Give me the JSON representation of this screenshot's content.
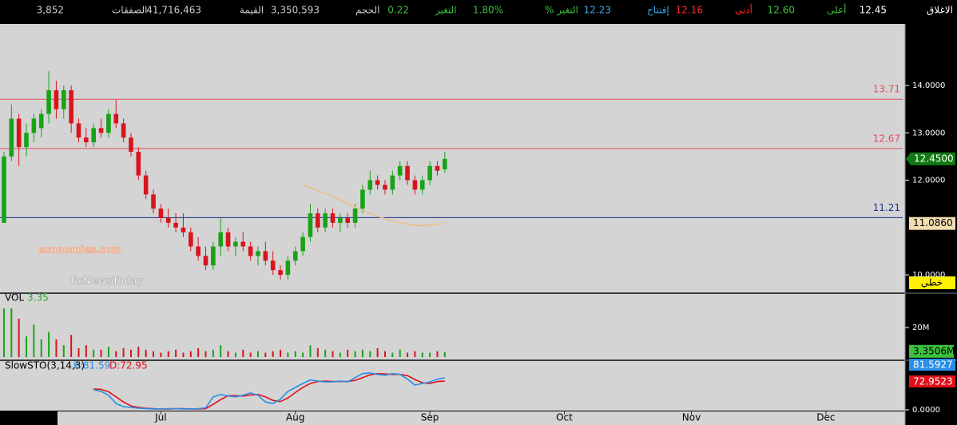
{
  "header": {
    "stats": [
      {
        "label": "الاغلاق",
        "value": "12.45"
      },
      {
        "label": "أعلى",
        "value": "12.60"
      },
      {
        "label": "أدنى",
        "value": "12.16"
      },
      {
        "label": "إفتتاح",
        "value": "12.23"
      },
      {
        "label": "التغير %",
        "value": "1.80%"
      },
      {
        "label": "التغير",
        "value": "0.22"
      },
      {
        "label": "الحجم",
        "value": "3,350,593"
      },
      {
        "label": "القيمة",
        "value": "41,716,463"
      },
      {
        "label": "الصفقات",
        "value": "3,852"
      }
    ]
  },
  "watermark": [
    "economies.com",
    "FxNewsToday"
  ],
  "chart_data": {
    "type": "candlestick",
    "up_color": "#17a317",
    "down_color": "#d8151d",
    "xlim": [
      -0.53,
      120.6
    ],
    "xticks": [
      {
        "value": 21,
        "label": "Jul"
      },
      {
        "value": 39,
        "label": "Aug"
      },
      {
        "value": 57,
        "label": "Sep"
      },
      {
        "value": 75,
        "label": "Oct"
      },
      {
        "value": 92,
        "label": "Nov"
      },
      {
        "value": 110,
        "label": "Dec"
      }
    ],
    "ylim": [
      9.63,
      15.3
    ],
    "yticks": [
      {
        "value": 10,
        "label": "10.0000"
      },
      {
        "value": 12,
        "label": "12.0000"
      },
      {
        "value": 13,
        "label": "13.0000"
      },
      {
        "value": 14,
        "label": "14.0000"
      }
    ],
    "open": [
      11.1,
      12.5,
      13.3,
      12.7,
      13.0,
      13.1,
      13.4,
      13.9,
      13.5,
      13.9,
      13.2,
      12.9,
      12.8,
      13.1,
      13.0,
      13.4,
      13.2,
      12.9,
      12.6,
      12.1,
      11.7,
      11.4,
      11.2,
      11.1,
      11.0,
      10.9,
      10.6,
      10.4,
      10.2,
      10.6,
      10.9,
      10.6,
      10.7,
      10.6,
      10.4,
      10.5,
      10.3,
      10.1,
      10.0,
      10.3,
      10.5,
      10.8,
      11.3,
      11.0,
      11.3,
      11.1,
      11.2,
      11.1,
      11.4,
      11.8,
      12.0,
      11.9,
      11.8,
      12.1,
      12.3,
      12.0,
      11.8,
      12.0,
      12.3,
      12.23
    ],
    "high": [
      12.6,
      13.6,
      13.4,
      13.2,
      13.4,
      13.5,
      14.3,
      14.1,
      14.0,
      14.0,
      13.3,
      13.1,
      13.2,
      13.3,
      13.5,
      13.7,
      13.3,
      13.0,
      12.7,
      12.2,
      11.8,
      11.5,
      11.4,
      11.3,
      11.3,
      11.0,
      10.8,
      10.6,
      10.7,
      11.2,
      11.0,
      10.8,
      10.9,
      10.7,
      10.6,
      10.7,
      10.5,
      10.2,
      10.4,
      10.6,
      10.9,
      11.5,
      11.4,
      11.4,
      11.4,
      11.3,
      11.3,
      11.5,
      11.9,
      12.2,
      12.1,
      12.0,
      12.2,
      12.4,
      12.4,
      12.1,
      12.1,
      12.4,
      12.4,
      12.6
    ],
    "low": [
      11.1,
      12.4,
      12.3,
      12.5,
      12.8,
      12.9,
      13.2,
      13.3,
      13.3,
      13.0,
      12.8,
      12.7,
      12.7,
      12.9,
      12.9,
      13.1,
      12.8,
      12.5,
      12.0,
      11.6,
      11.3,
      11.1,
      11.0,
      10.9,
      10.8,
      10.5,
      10.3,
      10.1,
      10.1,
      10.4,
      10.5,
      10.4,
      10.5,
      10.3,
      10.2,
      10.2,
      10.0,
      9.9,
      9.9,
      10.2,
      10.4,
      10.7,
      10.9,
      10.9,
      11.0,
      10.9,
      11.0,
      11.0,
      11.3,
      11.7,
      11.8,
      11.7,
      11.7,
      12.0,
      11.9,
      11.7,
      11.7,
      11.9,
      12.1,
      12.16
    ],
    "close": [
      12.5,
      13.3,
      12.7,
      13.0,
      13.3,
      13.4,
      13.9,
      13.5,
      13.9,
      13.2,
      12.9,
      12.8,
      13.1,
      13.0,
      13.4,
      13.2,
      12.9,
      12.6,
      12.1,
      11.7,
      11.4,
      11.2,
      11.1,
      11.0,
      10.9,
      10.6,
      10.4,
      10.2,
      10.6,
      10.9,
      10.6,
      10.7,
      10.6,
      10.4,
      10.5,
      10.3,
      10.1,
      10.0,
      10.3,
      10.5,
      10.8,
      11.3,
      11.0,
      11.3,
      11.1,
      11.2,
      11.1,
      11.4,
      11.8,
      12.0,
      11.9,
      11.8,
      12.1,
      12.3,
      12.0,
      11.8,
      12.0,
      12.3,
      12.2,
      12.45
    ],
    "last_price": {
      "value": 12.45,
      "label": "12.4500",
      "color": "#0f7a0f"
    },
    "levels": [
      {
        "value": 13.71,
        "color": "#e0505a"
      },
      {
        "value": 12.67,
        "color": "#e0505a"
      },
      {
        "value": 11.21,
        "color": "#1d2f8c"
      }
    ],
    "ma": {
      "color": "#e8c088",
      "values": [
        null,
        null,
        null,
        null,
        null,
        null,
        null,
        null,
        null,
        null,
        null,
        null,
        null,
        null,
        null,
        null,
        null,
        null,
        null,
        null,
        null,
        null,
        null,
        null,
        null,
        null,
        null,
        null,
        null,
        null,
        null,
        null,
        null,
        null,
        null,
        null,
        null,
        null,
        null,
        null,
        11.9,
        11.84,
        11.78,
        11.72,
        11.65,
        11.58,
        11.5,
        11.43,
        11.36,
        11.3,
        11.24,
        11.19,
        11.14,
        11.1,
        11.07,
        11.05,
        11.04,
        11.05,
        11.07,
        11.086
      ],
      "value_label": "11.0860"
    },
    "scale_mode": "خطي",
    "volume": {
      "title": "VOL",
      "value_label": "3.35",
      "last_label": "3.3506M",
      "ylim": [
        0,
        42.7
      ],
      "yticks": [
        {
          "value": 20,
          "label": "20M"
        }
      ],
      "values": [
        33,
        33,
        26,
        14,
        22,
        12,
        17,
        12,
        8,
        15,
        6,
        8,
        5,
        5,
        7,
        4,
        6,
        5,
        7,
        5,
        4,
        3,
        4,
        5,
        3,
        4,
        6,
        4,
        5,
        8,
        4,
        3,
        5,
        3,
        4,
        3,
        4,
        5,
        3,
        4,
        3,
        8,
        6,
        5,
        4,
        3,
        5,
        4,
        5,
        4,
        6,
        4,
        3,
        5,
        3,
        4,
        3,
        3,
        4,
        3.3506
      ]
    },
    "stoch": {
      "title": "SlowSTO(3,14,3)",
      "ylim": [
        0,
        124
      ],
      "yticks": [
        {
          "value": 0,
          "label": "0.0000"
        }
      ],
      "k": {
        "color": "#2a8ee8",
        "value_label": "K:81.59",
        "last_label": "81.5927",
        "values": [
          null,
          null,
          null,
          null,
          null,
          null,
          null,
          null,
          null,
          null,
          null,
          null,
          51,
          47,
          37,
          16,
          8,
          6,
          4,
          3,
          2,
          2,
          3,
          3,
          2,
          2,
          3,
          5,
          33,
          39,
          35,
          33,
          37,
          43,
          37,
          20,
          16,
          27,
          47,
          57,
          67,
          76,
          73,
          71,
          71,
          73,
          71,
          82,
          92,
          94,
          90,
          88,
          92,
          90,
          78,
          63,
          67,
          71,
          78,
          81.5927
        ]
      },
      "d": {
        "color": "#e0101a",
        "value_label": "D:72.95",
        "last_label": "72.9523",
        "values": [
          null,
          null,
          null,
          null,
          null,
          null,
          null,
          null,
          null,
          null,
          null,
          null,
          53,
          52,
          46,
          33,
          20,
          10,
          6,
          4,
          3,
          2,
          2,
          3,
          3,
          2,
          2,
          3,
          14,
          26,
          36,
          36,
          35,
          38,
          39,
          33,
          24,
          21,
          30,
          44,
          57,
          67,
          72,
          73,
          72,
          72,
          72,
          75,
          82,
          89,
          92,
          91,
          90,
          90,
          87,
          77,
          69,
          67,
          72,
          72.9523
        ]
      }
    }
  }
}
